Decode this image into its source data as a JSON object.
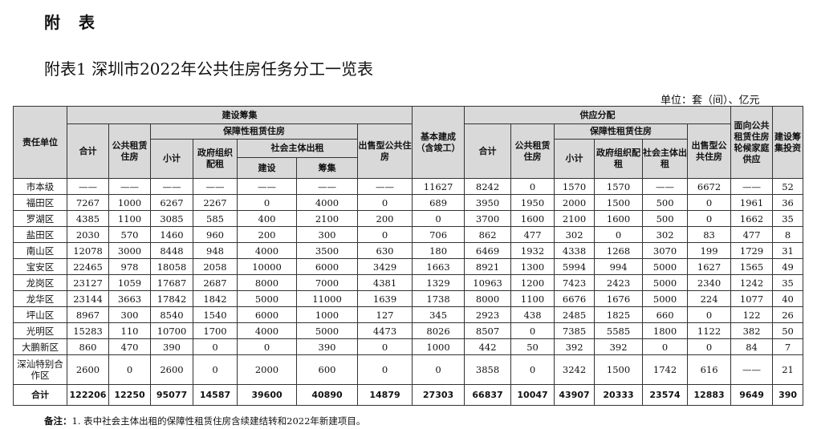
{
  "heading": "附  表",
  "title": "附表1  深圳市2022年公共住房任务分工一览表",
  "unit": "单位：套（间）、亿元",
  "headers": {
    "unit": "责任单位",
    "build": "建设筹集",
    "total": "合计",
    "public_rental": "公共租赁住房",
    "affordable_rental": "保障性租赁住房",
    "subtotal": "小计",
    "gov_rental": "政府组织配租",
    "social_rental": "社会主体出租",
    "construct": "建设",
    "raise": "筹集",
    "for_sale": "出售型公共住房",
    "completed": "基本建成（含竣工）",
    "supply": "供应分配",
    "waiting_supply": "面向公共租赁住房轮候家庭供应",
    "investment": "建设筹集投资"
  },
  "rows": [
    [
      "市本级",
      "——",
      "——",
      "——",
      "——",
      "——",
      "——",
      "——",
      "11627",
      "8242",
      "0",
      "1570",
      "1570",
      "——",
      "6672",
      "——",
      "52"
    ],
    [
      "福田区",
      "7267",
      "1000",
      "6267",
      "2267",
      "0",
      "4000",
      "0",
      "689",
      "3950",
      "1950",
      "2000",
      "1500",
      "500",
      "0",
      "1961",
      "36"
    ],
    [
      "罗湖区",
      "4385",
      "1100",
      "3085",
      "585",
      "400",
      "2100",
      "200",
      "0",
      "3700",
      "1600",
      "2100",
      "1600",
      "500",
      "0",
      "1662",
      "35"
    ],
    [
      "盐田区",
      "2030",
      "570",
      "1460",
      "960",
      "200",
      "300",
      "0",
      "706",
      "862",
      "477",
      "302",
      "0",
      "302",
      "83",
      "477",
      "8"
    ],
    [
      "南山区",
      "12078",
      "3000",
      "8448",
      "948",
      "4000",
      "3500",
      "630",
      "180",
      "6469",
      "1932",
      "4338",
      "1268",
      "3070",
      "199",
      "1729",
      "31"
    ],
    [
      "宝安区",
      "22465",
      "978",
      "18058",
      "2058",
      "10000",
      "6000",
      "3429",
      "1663",
      "8921",
      "1300",
      "5994",
      "994",
      "5000",
      "1627",
      "1565",
      "49"
    ],
    [
      "龙岗区",
      "23127",
      "1059",
      "17687",
      "2687",
      "8000",
      "7000",
      "4381",
      "1329",
      "10963",
      "1200",
      "7423",
      "2423",
      "5000",
      "2340",
      "1242",
      "35"
    ],
    [
      "龙华区",
      "23144",
      "3663",
      "17842",
      "1842",
      "5000",
      "11000",
      "1639",
      "1738",
      "8000",
      "1100",
      "6676",
      "1676",
      "5000",
      "224",
      "1077",
      "40"
    ],
    [
      "坪山区",
      "8967",
      "300",
      "8540",
      "1540",
      "6000",
      "1000",
      "127",
      "345",
      "2923",
      "438",
      "2485",
      "1825",
      "660",
      "0",
      "122",
      "26"
    ],
    [
      "光明区",
      "15283",
      "110",
      "10700",
      "1700",
      "4000",
      "5000",
      "4473",
      "8026",
      "8507",
      "0",
      "7385",
      "5585",
      "1800",
      "1122",
      "382",
      "50"
    ],
    [
      "大鹏新区",
      "860",
      "470",
      "390",
      "0",
      "0",
      "390",
      "0",
      "1000",
      "442",
      "50",
      "392",
      "392",
      "0",
      "0",
      "84",
      "7"
    ],
    [
      "深汕特别合作区",
      "2600",
      "0",
      "2600",
      "0",
      "2000",
      "600",
      "0",
      "0",
      "3858",
      "0",
      "3242",
      "1500",
      "1742",
      "616",
      "——",
      "21"
    ],
    [
      "合计",
      "122206",
      "12250",
      "95077",
      "14587",
      "39600",
      "40890",
      "14879",
      "27303",
      "66837",
      "10047",
      "43907",
      "20333",
      "23574",
      "12883",
      "9649",
      "390"
    ]
  ],
  "note": {
    "label": "备注：",
    "text": "1. 表中社会主体出租的保障性租赁住房含续建结转和2022年新建项目。"
  },
  "colors": {
    "header_bg": "#d9d9d9",
    "border": "#333333"
  }
}
